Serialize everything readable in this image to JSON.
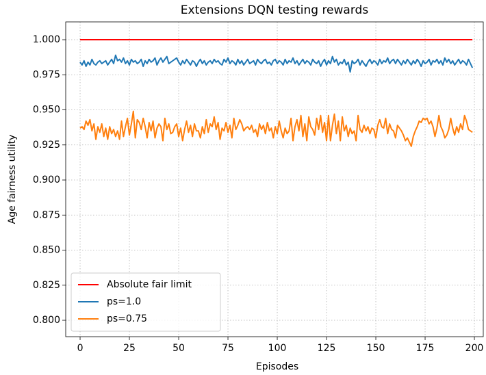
{
  "chart_data": {
    "type": "line",
    "title": "Extensions DQN testing rewards",
    "xlabel": "Episodes",
    "ylabel": "Age fairness utility",
    "xlim": [
      -7.3,
      204.5
    ],
    "ylim": [
      0.7883,
      1.0127
    ],
    "xticks": [
      0,
      25,
      50,
      75,
      100,
      125,
      150,
      175,
      200
    ],
    "yticks": [
      {
        "value": 0.8,
        "label": "0.800"
      },
      {
        "value": 0.825,
        "label": "0.825"
      },
      {
        "value": 0.85,
        "label": "0.850"
      },
      {
        "value": 0.875,
        "label": "0.875"
      },
      {
        "value": 0.9,
        "label": "0.900"
      },
      {
        "value": 0.925,
        "label": "0.925"
      },
      {
        "value": 0.95,
        "label": "0.950"
      },
      {
        "value": 0.975,
        "label": "0.975"
      },
      {
        "value": 1.0,
        "label": "1.000"
      }
    ],
    "grid": true,
    "legend": "lower left",
    "x": [
      0,
      1,
      2,
      3,
      4,
      5,
      6,
      7,
      8,
      9,
      10,
      11,
      12,
      13,
      14,
      15,
      16,
      17,
      18,
      19,
      20,
      21,
      22,
      23,
      24,
      25,
      26,
      27,
      28,
      29,
      30,
      31,
      32,
      33,
      34,
      35,
      36,
      37,
      38,
      39,
      40,
      41,
      42,
      43,
      44,
      45,
      46,
      47,
      48,
      49,
      50,
      51,
      52,
      53,
      54,
      55,
      56,
      57,
      58,
      59,
      60,
      61,
      62,
      63,
      64,
      65,
      66,
      67,
      68,
      69,
      70,
      71,
      72,
      73,
      74,
      75,
      76,
      77,
      78,
      79,
      80,
      81,
      82,
      83,
      84,
      85,
      86,
      87,
      88,
      89,
      90,
      91,
      92,
      93,
      94,
      95,
      96,
      97,
      98,
      99,
      100,
      101,
      102,
      103,
      104,
      105,
      106,
      107,
      108,
      109,
      110,
      111,
      112,
      113,
      114,
      115,
      116,
      117,
      118,
      119,
      120,
      121,
      122,
      123,
      124,
      125,
      126,
      127,
      128,
      129,
      130,
      131,
      132,
      133,
      134,
      135,
      136,
      137,
      138,
      139,
      140,
      141,
      142,
      143,
      144,
      145,
      146,
      147,
      148,
      149,
      150,
      151,
      152,
      153,
      154,
      155,
      156,
      157,
      158,
      159,
      160,
      161,
      162,
      163,
      164,
      165,
      166,
      167,
      168,
      169,
      170,
      171,
      172,
      173,
      174,
      175,
      176,
      177,
      178,
      179,
      180,
      181,
      182,
      183,
      184,
      185,
      186,
      187,
      188,
      189,
      190,
      191,
      192,
      193,
      194,
      195,
      196,
      197,
      198,
      199
    ],
    "series": [
      {
        "name": "Absolute fair limit",
        "color": "#ff0000",
        "values": [
          1,
          1,
          1,
          1,
          1,
          1,
          1,
          1,
          1,
          1,
          1,
          1,
          1,
          1,
          1,
          1,
          1,
          1,
          1,
          1,
          1,
          1,
          1,
          1,
          1,
          1,
          1,
          1,
          1,
          1,
          1,
          1,
          1,
          1,
          1,
          1,
          1,
          1,
          1,
          1,
          1,
          1,
          1,
          1,
          1,
          1,
          1,
          1,
          1,
          1,
          1,
          1,
          1,
          1,
          1,
          1,
          1,
          1,
          1,
          1,
          1,
          1,
          1,
          1,
          1,
          1,
          1,
          1,
          1,
          1,
          1,
          1,
          1,
          1,
          1,
          1,
          1,
          1,
          1,
          1,
          1,
          1,
          1,
          1,
          1,
          1,
          1,
          1,
          1,
          1,
          1,
          1,
          1,
          1,
          1,
          1,
          1,
          1,
          1,
          1,
          1,
          1,
          1,
          1,
          1,
          1,
          1,
          1,
          1,
          1,
          1,
          1,
          1,
          1,
          1,
          1,
          1,
          1,
          1,
          1,
          1,
          1,
          1,
          1,
          1,
          1,
          1,
          1,
          1,
          1,
          1,
          1,
          1,
          1,
          1,
          1,
          1,
          1,
          1,
          1,
          1,
          1,
          1,
          1,
          1,
          1,
          1,
          1,
          1,
          1,
          1,
          1,
          1,
          1,
          1,
          1,
          1,
          1,
          1,
          1,
          1,
          1,
          1,
          1,
          1,
          1,
          1,
          1,
          1,
          1,
          1,
          1,
          1,
          1,
          1,
          1,
          1,
          1,
          1,
          1,
          1,
          1,
          1,
          1,
          1,
          1,
          1,
          1,
          1,
          1,
          1,
          1,
          1,
          1,
          1,
          1,
          1,
          1,
          1,
          1
        ]
      },
      {
        "name": "ps=1.0",
        "color": "#1f77b4",
        "values": [
          0.984,
          0.982,
          0.985,
          0.981,
          0.984,
          0.982,
          0.986,
          0.983,
          0.982,
          0.984,
          0.985,
          0.983,
          0.984,
          0.985,
          0.982,
          0.984,
          0.986,
          0.983,
          0.989,
          0.985,
          0.986,
          0.984,
          0.987,
          0.983,
          0.985,
          0.982,
          0.986,
          0.984,
          0.985,
          0.983,
          0.984,
          0.986,
          0.981,
          0.985,
          0.983,
          0.986,
          0.984,
          0.985,
          0.987,
          0.982,
          0.985,
          0.987,
          0.984,
          0.986,
          0.988,
          0.983,
          0.984,
          0.985,
          0.986,
          0.987,
          0.984,
          0.982,
          0.985,
          0.983,
          0.986,
          0.984,
          0.982,
          0.985,
          0.984,
          0.981,
          0.984,
          0.986,
          0.983,
          0.985,
          0.982,
          0.984,
          0.985,
          0.983,
          0.986,
          0.984,
          0.985,
          0.983,
          0.982,
          0.986,
          0.984,
          0.987,
          0.983,
          0.985,
          0.984,
          0.982,
          0.986,
          0.983,
          0.985,
          0.982,
          0.984,
          0.986,
          0.983,
          0.984,
          0.985,
          0.982,
          0.986,
          0.984,
          0.983,
          0.985,
          0.986,
          0.983,
          0.984,
          0.982,
          0.985,
          0.986,
          0.983,
          0.985,
          0.984,
          0.982,
          0.986,
          0.983,
          0.985,
          0.984,
          0.987,
          0.983,
          0.985,
          0.982,
          0.984,
          0.986,
          0.983,
          0.985,
          0.984,
          0.982,
          0.986,
          0.984,
          0.983,
          0.985,
          0.981,
          0.984,
          0.986,
          0.982,
          0.985,
          0.983,
          0.988,
          0.984,
          0.986,
          0.982,
          0.984,
          0.983,
          0.986,
          0.982,
          0.984,
          0.977,
          0.985,
          0.983,
          0.984,
          0.986,
          0.982,
          0.985,
          0.983,
          0.981,
          0.984,
          0.986,
          0.983,
          0.985,
          0.984,
          0.982,
          0.986,
          0.983,
          0.985,
          0.984,
          0.987,
          0.983,
          0.985,
          0.986,
          0.983,
          0.986,
          0.984,
          0.982,
          0.985,
          0.983,
          0.986,
          0.984,
          0.982,
          0.985,
          0.983,
          0.986,
          0.984,
          0.981,
          0.985,
          0.983,
          0.984,
          0.986,
          0.982,
          0.985,
          0.984,
          0.986,
          0.983,
          0.985,
          0.982,
          0.987,
          0.984,
          0.986,
          0.983,
          0.985,
          0.982,
          0.984,
          0.986,
          0.983,
          0.985,
          0.984,
          0.982,
          0.986,
          0.983,
          0.98
        ]
      },
      {
        "name": "ps=0.75",
        "color": "#ff7f0e",
        "values": [
          0.937,
          0.938,
          0.936,
          0.942,
          0.939,
          0.943,
          0.935,
          0.94,
          0.929,
          0.938,
          0.934,
          0.94,
          0.931,
          0.937,
          0.929,
          0.938,
          0.933,
          0.936,
          0.931,
          0.935,
          0.929,
          0.942,
          0.931,
          0.938,
          0.944,
          0.932,
          0.94,
          0.949,
          0.93,
          0.943,
          0.941,
          0.936,
          0.944,
          0.938,
          0.93,
          0.941,
          0.935,
          0.942,
          0.93,
          0.937,
          0.94,
          0.938,
          0.928,
          0.944,
          0.936,
          0.94,
          0.933,
          0.934,
          0.938,
          0.94,
          0.931,
          0.937,
          0.928,
          0.936,
          0.942,
          0.934,
          0.939,
          0.931,
          0.94,
          0.935,
          0.935,
          0.93,
          0.938,
          0.933,
          0.943,
          0.934,
          0.94,
          0.938,
          0.945,
          0.936,
          0.941,
          0.929,
          0.937,
          0.935,
          0.941,
          0.934,
          0.939,
          0.93,
          0.944,
          0.936,
          0.939,
          0.943,
          0.94,
          0.935,
          0.937,
          0.938,
          0.936,
          0.939,
          0.934,
          0.936,
          0.931,
          0.94,
          0.936,
          0.939,
          0.933,
          0.941,
          0.935,
          0.937,
          0.93,
          0.938,
          0.933,
          0.942,
          0.935,
          0.93,
          0.937,
          0.933,
          0.935,
          0.944,
          0.928,
          0.938,
          0.943,
          0.935,
          0.946,
          0.931,
          0.94,
          0.928,
          0.945,
          0.938,
          0.936,
          0.932,
          0.944,
          0.936,
          0.946,
          0.934,
          0.941,
          0.928,
          0.946,
          0.928,
          0.939,
          0.947,
          0.933,
          0.942,
          0.928,
          0.945,
          0.935,
          0.939,
          0.931,
          0.937,
          0.933,
          0.935,
          0.928,
          0.946,
          0.936,
          0.934,
          0.939,
          0.935,
          0.938,
          0.933,
          0.937,
          0.936,
          0.93,
          0.939,
          0.943,
          0.938,
          0.937,
          0.944,
          0.933,
          0.94,
          0.936,
          0.935,
          0.93,
          0.939,
          0.937,
          0.935,
          0.932,
          0.928,
          0.93,
          0.927,
          0.924,
          0.931,
          0.935,
          0.938,
          0.942,
          0.941,
          0.944,
          0.943,
          0.944,
          0.94,
          0.942,
          0.938,
          0.931,
          0.937,
          0.946,
          0.938,
          0.935,
          0.93,
          0.932,
          0.936,
          0.944,
          0.937,
          0.932,
          0.938,
          0.934,
          0.94,
          0.936,
          0.946,
          0.942,
          0.936,
          0.935,
          0.934
        ]
      }
    ]
  }
}
